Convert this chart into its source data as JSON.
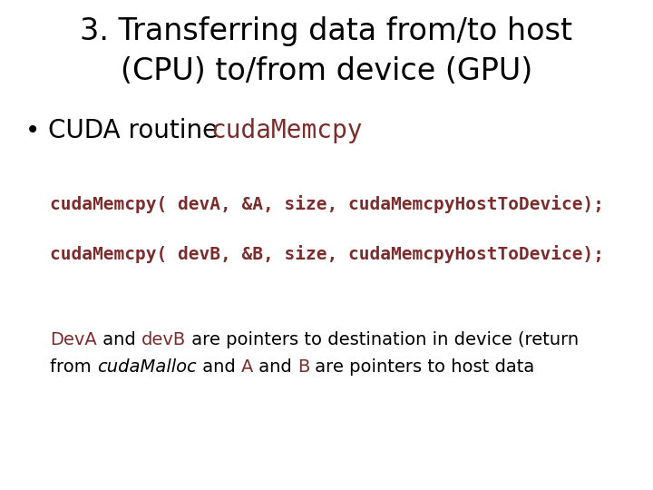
{
  "title_line1": "3. Transferring data from/to host",
  "title_line2": "(CPU) to/from device (GPU)",
  "bullet_normal": "• CUDA routine ",
  "bullet_code": "cudaMemcpy",
  "code_line1": "cudaMemcpy( devA, &A, size, cudaMemcpyHostToDevice);",
  "code_line2": "cudaMemcpy( devB, &B, size, cudaMemcpyHostToDevice);",
  "background_color": "#ffffff",
  "title_color": "#000000",
  "bullet_text_color": "#000000",
  "code_color": "#7B2C2C",
  "desc_color": "#000000",
  "desc_highlight_color": "#7B2C2C",
  "title_fontsize": 24,
  "bullet_fontsize": 20,
  "code_fontsize": 14,
  "desc_fontsize": 14
}
